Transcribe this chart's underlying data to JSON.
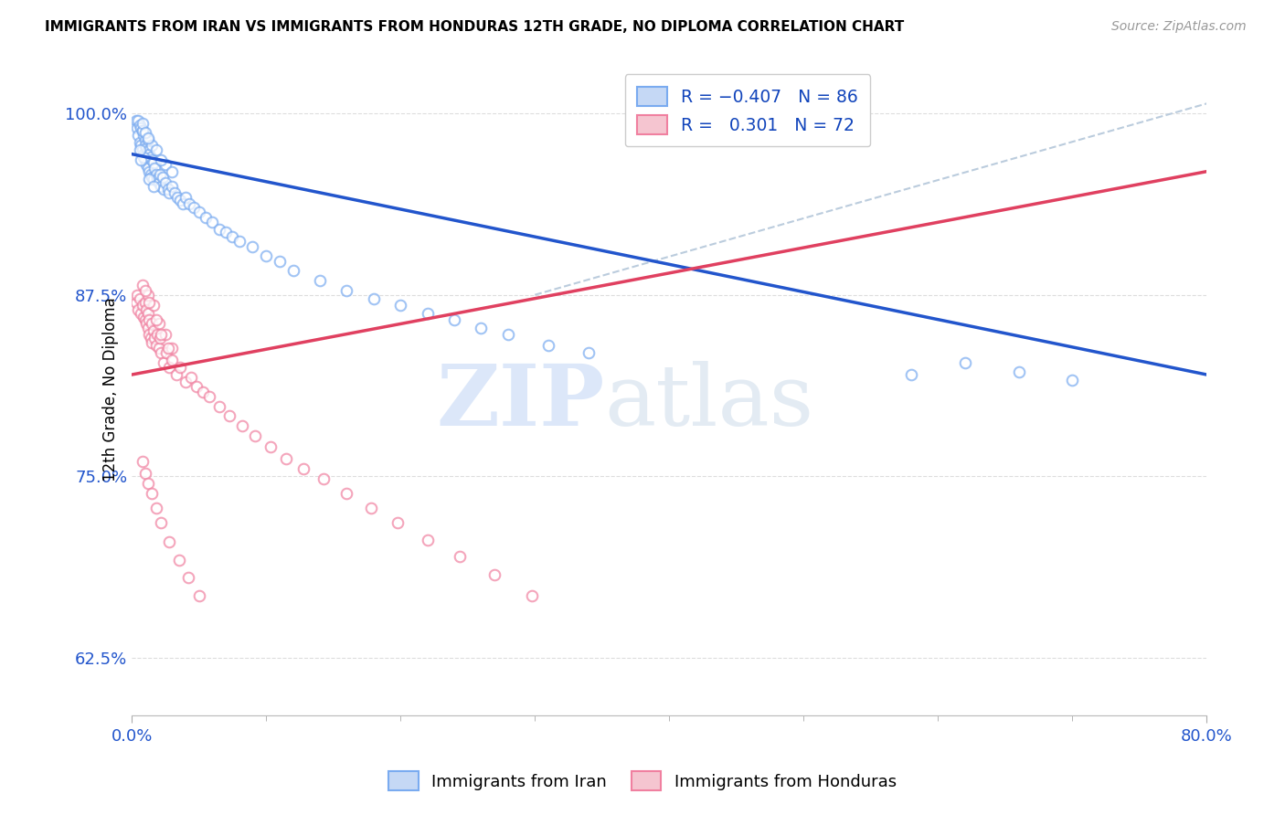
{
  "title": "IMMIGRANTS FROM IRAN VS IMMIGRANTS FROM HONDURAS 12TH GRADE, NO DIPLOMA CORRELATION CHART",
  "source": "Source: ZipAtlas.com",
  "ylabel": "12th Grade, No Diploma",
  "ytick_vals": [
    0.625,
    0.75,
    0.875,
    1.0
  ],
  "xlim": [
    0.0,
    0.8
  ],
  "ylim": [
    0.585,
    1.035
  ],
  "color_iran": "#7AABF0",
  "color_honduras": "#F080A0",
  "color_iran_line": "#2255CC",
  "color_honduras_line": "#E04060",
  "color_dashed": "#BBCCDD",
  "watermark_zip": "ZIP",
  "watermark_atlas": "atlas",
  "iran_line_x": [
    0.0,
    0.8
  ],
  "iran_line_y": [
    0.972,
    0.82
  ],
  "honduras_line_x": [
    0.0,
    0.8
  ],
  "honduras_line_y": [
    0.82,
    0.96
  ],
  "dashed_line_x": [
    0.3,
    0.85
  ],
  "dashed_line_y": [
    0.875,
    1.02
  ],
  "iran_scatter_x": [
    0.003,
    0.004,
    0.005,
    0.005,
    0.006,
    0.006,
    0.007,
    0.007,
    0.008,
    0.008,
    0.009,
    0.009,
    0.01,
    0.01,
    0.01,
    0.011,
    0.011,
    0.012,
    0.012,
    0.013,
    0.013,
    0.014,
    0.014,
    0.015,
    0.015,
    0.016,
    0.016,
    0.017,
    0.018,
    0.019,
    0.02,
    0.021,
    0.022,
    0.023,
    0.024,
    0.025,
    0.027,
    0.028,
    0.03,
    0.032,
    0.034,
    0.036,
    0.038,
    0.04,
    0.043,
    0.046,
    0.05,
    0.055,
    0.06,
    0.065,
    0.07,
    0.075,
    0.08,
    0.09,
    0.1,
    0.11,
    0.12,
    0.14,
    0.16,
    0.18,
    0.2,
    0.22,
    0.24,
    0.26,
    0.28,
    0.31,
    0.34,
    0.025,
    0.03,
    0.008,
    0.012,
    0.015,
    0.018,
    0.022,
    0.58,
    0.62,
    0.66,
    0.7,
    0.008,
    0.01,
    0.012,
    0.009,
    0.006,
    0.007,
    0.013,
    0.016
  ],
  "iran_scatter_y": [
    0.995,
    0.99,
    0.995,
    0.985,
    0.992,
    0.98,
    0.99,
    0.978,
    0.988,
    0.975,
    0.985,
    0.972,
    0.982,
    0.978,
    0.968,
    0.976,
    0.965,
    0.974,
    0.962,
    0.972,
    0.96,
    0.97,
    0.958,
    0.968,
    0.956,
    0.966,
    0.955,
    0.962,
    0.958,
    0.955,
    0.952,
    0.958,
    0.95,
    0.956,
    0.948,
    0.952,
    0.948,
    0.945,
    0.95,
    0.945,
    0.942,
    0.94,
    0.938,
    0.942,
    0.938,
    0.935,
    0.932,
    0.928,
    0.925,
    0.92,
    0.918,
    0.915,
    0.912,
    0.908,
    0.902,
    0.898,
    0.892,
    0.885,
    0.878,
    0.872,
    0.868,
    0.862,
    0.858,
    0.852,
    0.848,
    0.84,
    0.835,
    0.965,
    0.96,
    0.988,
    0.982,
    0.978,
    0.975,
    0.968,
    0.82,
    0.828,
    0.822,
    0.816,
    0.993,
    0.987,
    0.983,
    0.97,
    0.975,
    0.968,
    0.955,
    0.95
  ],
  "honduras_scatter_x": [
    0.003,
    0.004,
    0.005,
    0.006,
    0.007,
    0.008,
    0.009,
    0.01,
    0.01,
    0.011,
    0.011,
    0.012,
    0.012,
    0.013,
    0.013,
    0.014,
    0.015,
    0.015,
    0.016,
    0.017,
    0.018,
    0.019,
    0.02,
    0.021,
    0.022,
    0.024,
    0.026,
    0.028,
    0.03,
    0.033,
    0.036,
    0.04,
    0.044,
    0.048,
    0.053,
    0.058,
    0.065,
    0.073,
    0.082,
    0.092,
    0.103,
    0.115,
    0.128,
    0.143,
    0.16,
    0.178,
    0.198,
    0.22,
    0.244,
    0.27,
    0.298,
    0.012,
    0.016,
    0.02,
    0.025,
    0.03,
    0.008,
    0.01,
    0.013,
    0.018,
    0.022,
    0.027,
    0.008,
    0.01,
    0.012,
    0.015,
    0.018,
    0.022,
    0.028,
    0.035,
    0.042,
    0.05
  ],
  "honduras_scatter_y": [
    0.87,
    0.875,
    0.865,
    0.872,
    0.862,
    0.868,
    0.86,
    0.858,
    0.87,
    0.855,
    0.865,
    0.852,
    0.862,
    0.848,
    0.858,
    0.845,
    0.855,
    0.842,
    0.85,
    0.845,
    0.84,
    0.848,
    0.838,
    0.845,
    0.835,
    0.828,
    0.835,
    0.825,
    0.83,
    0.82,
    0.825,
    0.815,
    0.818,
    0.812,
    0.808,
    0.805,
    0.798,
    0.792,
    0.785,
    0.778,
    0.77,
    0.762,
    0.755,
    0.748,
    0.738,
    0.728,
    0.718,
    0.706,
    0.695,
    0.682,
    0.668,
    0.875,
    0.868,
    0.855,
    0.848,
    0.838,
    0.882,
    0.878,
    0.87,
    0.858,
    0.848,
    0.838,
    0.76,
    0.752,
    0.745,
    0.738,
    0.728,
    0.718,
    0.705,
    0.692,
    0.68,
    0.668
  ]
}
